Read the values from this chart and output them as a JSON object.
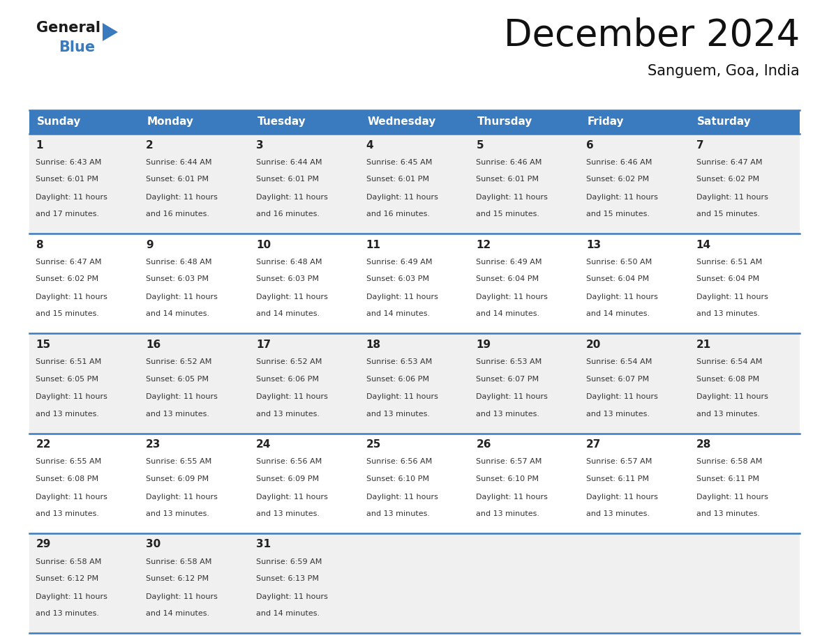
{
  "title": "December 2024",
  "subtitle": "Sanguem, Goa, India",
  "header_color": "#3a7abf",
  "header_text_color": "#ffffff",
  "bg_color": "#ffffff",
  "row_bg_colors": [
    "#f0f0f0",
    "#ffffff",
    "#f0f0f0",
    "#ffffff",
    "#f0f0f0"
  ],
  "day_names": [
    "Sunday",
    "Monday",
    "Tuesday",
    "Wednesday",
    "Thursday",
    "Friday",
    "Saturday"
  ],
  "days": [
    {
      "day": 1,
      "col": 0,
      "row": 0,
      "sunrise": "6:43 AM",
      "sunset": "6:01 PM",
      "daylight": "11 hours and 17 minutes."
    },
    {
      "day": 2,
      "col": 1,
      "row": 0,
      "sunrise": "6:44 AM",
      "sunset": "6:01 PM",
      "daylight": "11 hours and 16 minutes."
    },
    {
      "day": 3,
      "col": 2,
      "row": 0,
      "sunrise": "6:44 AM",
      "sunset": "6:01 PM",
      "daylight": "11 hours and 16 minutes."
    },
    {
      "day": 4,
      "col": 3,
      "row": 0,
      "sunrise": "6:45 AM",
      "sunset": "6:01 PM",
      "daylight": "11 hours and 16 minutes."
    },
    {
      "day": 5,
      "col": 4,
      "row": 0,
      "sunrise": "6:46 AM",
      "sunset": "6:01 PM",
      "daylight": "11 hours and 15 minutes."
    },
    {
      "day": 6,
      "col": 5,
      "row": 0,
      "sunrise": "6:46 AM",
      "sunset": "6:02 PM",
      "daylight": "11 hours and 15 minutes."
    },
    {
      "day": 7,
      "col": 6,
      "row": 0,
      "sunrise": "6:47 AM",
      "sunset": "6:02 PM",
      "daylight": "11 hours and 15 minutes."
    },
    {
      "day": 8,
      "col": 0,
      "row": 1,
      "sunrise": "6:47 AM",
      "sunset": "6:02 PM",
      "daylight": "11 hours and 15 minutes."
    },
    {
      "day": 9,
      "col": 1,
      "row": 1,
      "sunrise": "6:48 AM",
      "sunset": "6:03 PM",
      "daylight": "11 hours and 14 minutes."
    },
    {
      "day": 10,
      "col": 2,
      "row": 1,
      "sunrise": "6:48 AM",
      "sunset": "6:03 PM",
      "daylight": "11 hours and 14 minutes."
    },
    {
      "day": 11,
      "col": 3,
      "row": 1,
      "sunrise": "6:49 AM",
      "sunset": "6:03 PM",
      "daylight": "11 hours and 14 minutes."
    },
    {
      "day": 12,
      "col": 4,
      "row": 1,
      "sunrise": "6:49 AM",
      "sunset": "6:04 PM",
      "daylight": "11 hours and 14 minutes."
    },
    {
      "day": 13,
      "col": 5,
      "row": 1,
      "sunrise": "6:50 AM",
      "sunset": "6:04 PM",
      "daylight": "11 hours and 14 minutes."
    },
    {
      "day": 14,
      "col": 6,
      "row": 1,
      "sunrise": "6:51 AM",
      "sunset": "6:04 PM",
      "daylight": "11 hours and 13 minutes."
    },
    {
      "day": 15,
      "col": 0,
      "row": 2,
      "sunrise": "6:51 AM",
      "sunset": "6:05 PM",
      "daylight": "11 hours and 13 minutes."
    },
    {
      "day": 16,
      "col": 1,
      "row": 2,
      "sunrise": "6:52 AM",
      "sunset": "6:05 PM",
      "daylight": "11 hours and 13 minutes."
    },
    {
      "day": 17,
      "col": 2,
      "row": 2,
      "sunrise": "6:52 AM",
      "sunset": "6:06 PM",
      "daylight": "11 hours and 13 minutes."
    },
    {
      "day": 18,
      "col": 3,
      "row": 2,
      "sunrise": "6:53 AM",
      "sunset": "6:06 PM",
      "daylight": "11 hours and 13 minutes."
    },
    {
      "day": 19,
      "col": 4,
      "row": 2,
      "sunrise": "6:53 AM",
      "sunset": "6:07 PM",
      "daylight": "11 hours and 13 minutes."
    },
    {
      "day": 20,
      "col": 5,
      "row": 2,
      "sunrise": "6:54 AM",
      "sunset": "6:07 PM",
      "daylight": "11 hours and 13 minutes."
    },
    {
      "day": 21,
      "col": 6,
      "row": 2,
      "sunrise": "6:54 AM",
      "sunset": "6:08 PM",
      "daylight": "11 hours and 13 minutes."
    },
    {
      "day": 22,
      "col": 0,
      "row": 3,
      "sunrise": "6:55 AM",
      "sunset": "6:08 PM",
      "daylight": "11 hours and 13 minutes."
    },
    {
      "day": 23,
      "col": 1,
      "row": 3,
      "sunrise": "6:55 AM",
      "sunset": "6:09 PM",
      "daylight": "11 hours and 13 minutes."
    },
    {
      "day": 24,
      "col": 2,
      "row": 3,
      "sunrise": "6:56 AM",
      "sunset": "6:09 PM",
      "daylight": "11 hours and 13 minutes."
    },
    {
      "day": 25,
      "col": 3,
      "row": 3,
      "sunrise": "6:56 AM",
      "sunset": "6:10 PM",
      "daylight": "11 hours and 13 minutes."
    },
    {
      "day": 26,
      "col": 4,
      "row": 3,
      "sunrise": "6:57 AM",
      "sunset": "6:10 PM",
      "daylight": "11 hours and 13 minutes."
    },
    {
      "day": 27,
      "col": 5,
      "row": 3,
      "sunrise": "6:57 AM",
      "sunset": "6:11 PM",
      "daylight": "11 hours and 13 minutes."
    },
    {
      "day": 28,
      "col": 6,
      "row": 3,
      "sunrise": "6:58 AM",
      "sunset": "6:11 PM",
      "daylight": "11 hours and 13 minutes."
    },
    {
      "day": 29,
      "col": 0,
      "row": 4,
      "sunrise": "6:58 AM",
      "sunset": "6:12 PM",
      "daylight": "11 hours and 13 minutes."
    },
    {
      "day": 30,
      "col": 1,
      "row": 4,
      "sunrise": "6:58 AM",
      "sunset": "6:12 PM",
      "daylight": "11 hours and 14 minutes."
    },
    {
      "day": 31,
      "col": 2,
      "row": 4,
      "sunrise": "6:59 AM",
      "sunset": "6:13 PM",
      "daylight": "11 hours and 14 minutes."
    }
  ],
  "num_rows": 5,
  "logo_general_color": "#1a1a1a",
  "logo_blue_color": "#3a7abf",
  "title_fontsize": 38,
  "subtitle_fontsize": 15,
  "header_fontsize": 11,
  "day_num_fontsize": 11,
  "cell_text_fontsize": 8
}
